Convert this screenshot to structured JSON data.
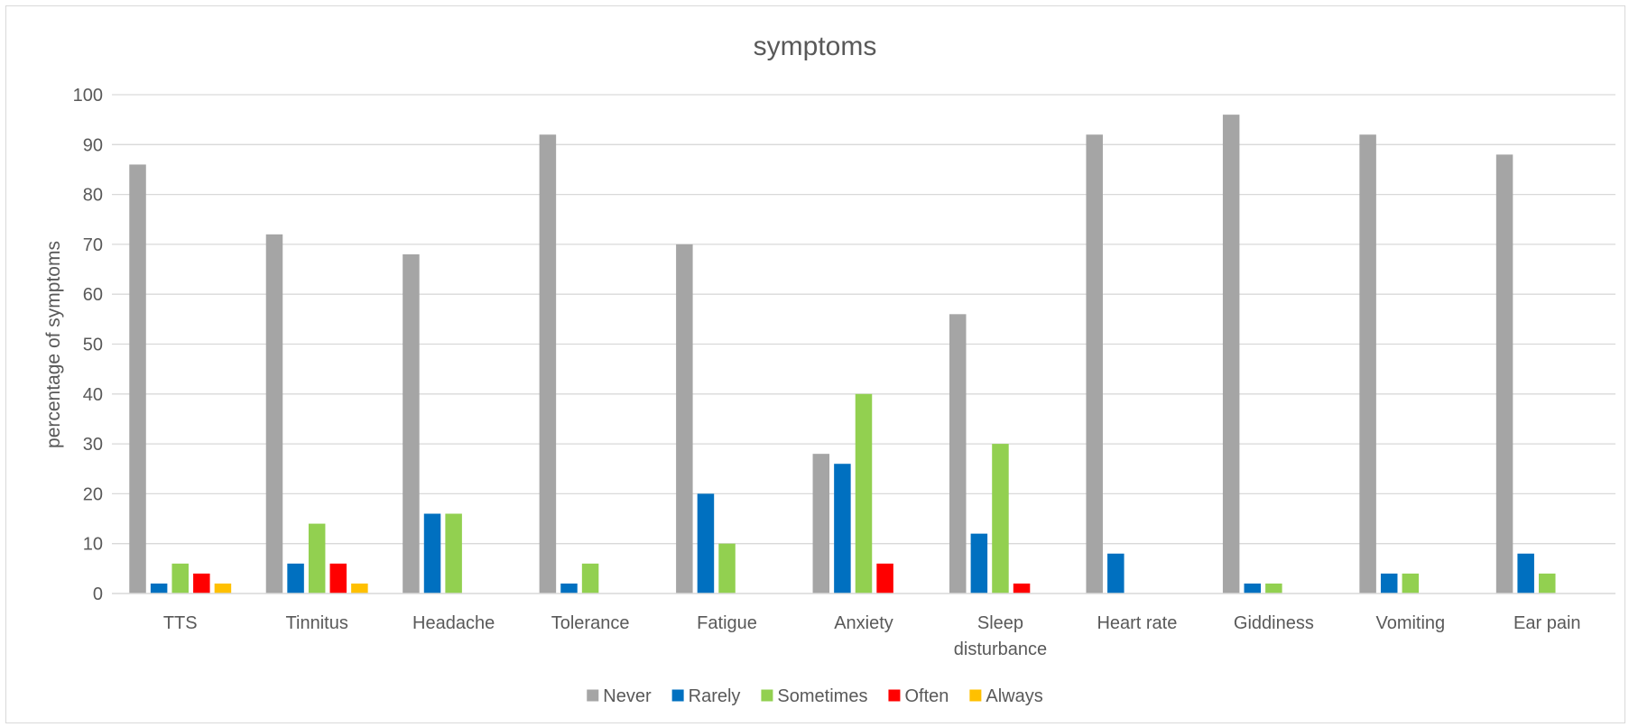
{
  "chart_data": {
    "type": "bar",
    "title": "symptoms",
    "xlabel": "",
    "ylabel": "percentage of symptoms",
    "ylim": [
      0,
      100
    ],
    "yticks": [
      0,
      10,
      20,
      30,
      40,
      50,
      60,
      70,
      80,
      90,
      100
    ],
    "grid": true,
    "legend_position": "bottom",
    "categories": [
      "TTS",
      "Tinnitus",
      "Headache",
      "Tolerance",
      "Fatigue",
      "Anxiety",
      "Sleep disturbance",
      "Heart rate",
      "Giddiness",
      "Vomiting",
      "Ear pain"
    ],
    "series": [
      {
        "name": "Never",
        "color": "#a5a5a5",
        "values": [
          86,
          72,
          68,
          92,
          70,
          28,
          56,
          92,
          96,
          92,
          88
        ]
      },
      {
        "name": "Rarely",
        "color": "#0070c0",
        "values": [
          2,
          6,
          16,
          2,
          20,
          26,
          12,
          8,
          2,
          4,
          8
        ]
      },
      {
        "name": "Sometimes",
        "color": "#92d050",
        "values": [
          6,
          14,
          16,
          6,
          10,
          40,
          30,
          0,
          2,
          4,
          4
        ]
      },
      {
        "name": "Often",
        "color": "#ff0000",
        "values": [
          4,
          6,
          0,
          0,
          0,
          6,
          2,
          0,
          0,
          0,
          0
        ]
      },
      {
        "name": "Always",
        "color": "#ffc000",
        "values": [
          2,
          2,
          0,
          0,
          0,
          0,
          0,
          0,
          0,
          0,
          0
        ]
      }
    ]
  }
}
